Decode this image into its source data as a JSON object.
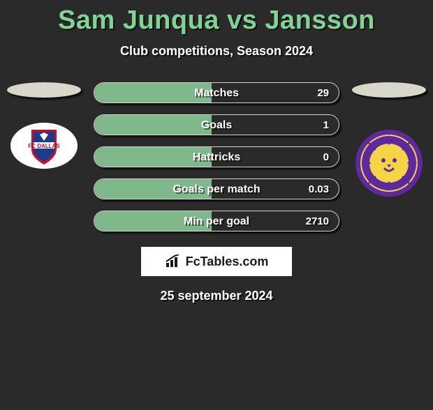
{
  "title": "Sam Junqua vs Jansson",
  "subtitle": "Club competitions, Season 2024",
  "left_team": {
    "name": "FC Dallas",
    "logo_bg": "#ffffff",
    "logo_accent_blue": "#1d3b8b",
    "logo_accent_red": "#c8102e"
  },
  "right_team": {
    "name": "Orlando City",
    "logo_bg": "#5e299e",
    "logo_accent": "#f5d547"
  },
  "ellipse_color": "#d7d7cb",
  "stat_bar": {
    "border_color": "#d7d7cb",
    "fill_color": "#7fb88a",
    "height": 30
  },
  "stats": [
    {
      "label": "Matches",
      "value": "29",
      "fill_pct": 48
    },
    {
      "label": "Goals",
      "value": "1",
      "fill_pct": 48
    },
    {
      "label": "Hattricks",
      "value": "0",
      "fill_pct": 48
    },
    {
      "label": "Goals per match",
      "value": "0.03",
      "fill_pct": 48
    },
    {
      "label": "Min per goal",
      "value": "2710",
      "fill_pct": 48
    }
  ],
  "brand": "FcTables.com",
  "date": "25 september 2024",
  "colors": {
    "page_bg": "#2a2a2a",
    "title": "#7fd394",
    "text": "#ffffff"
  }
}
